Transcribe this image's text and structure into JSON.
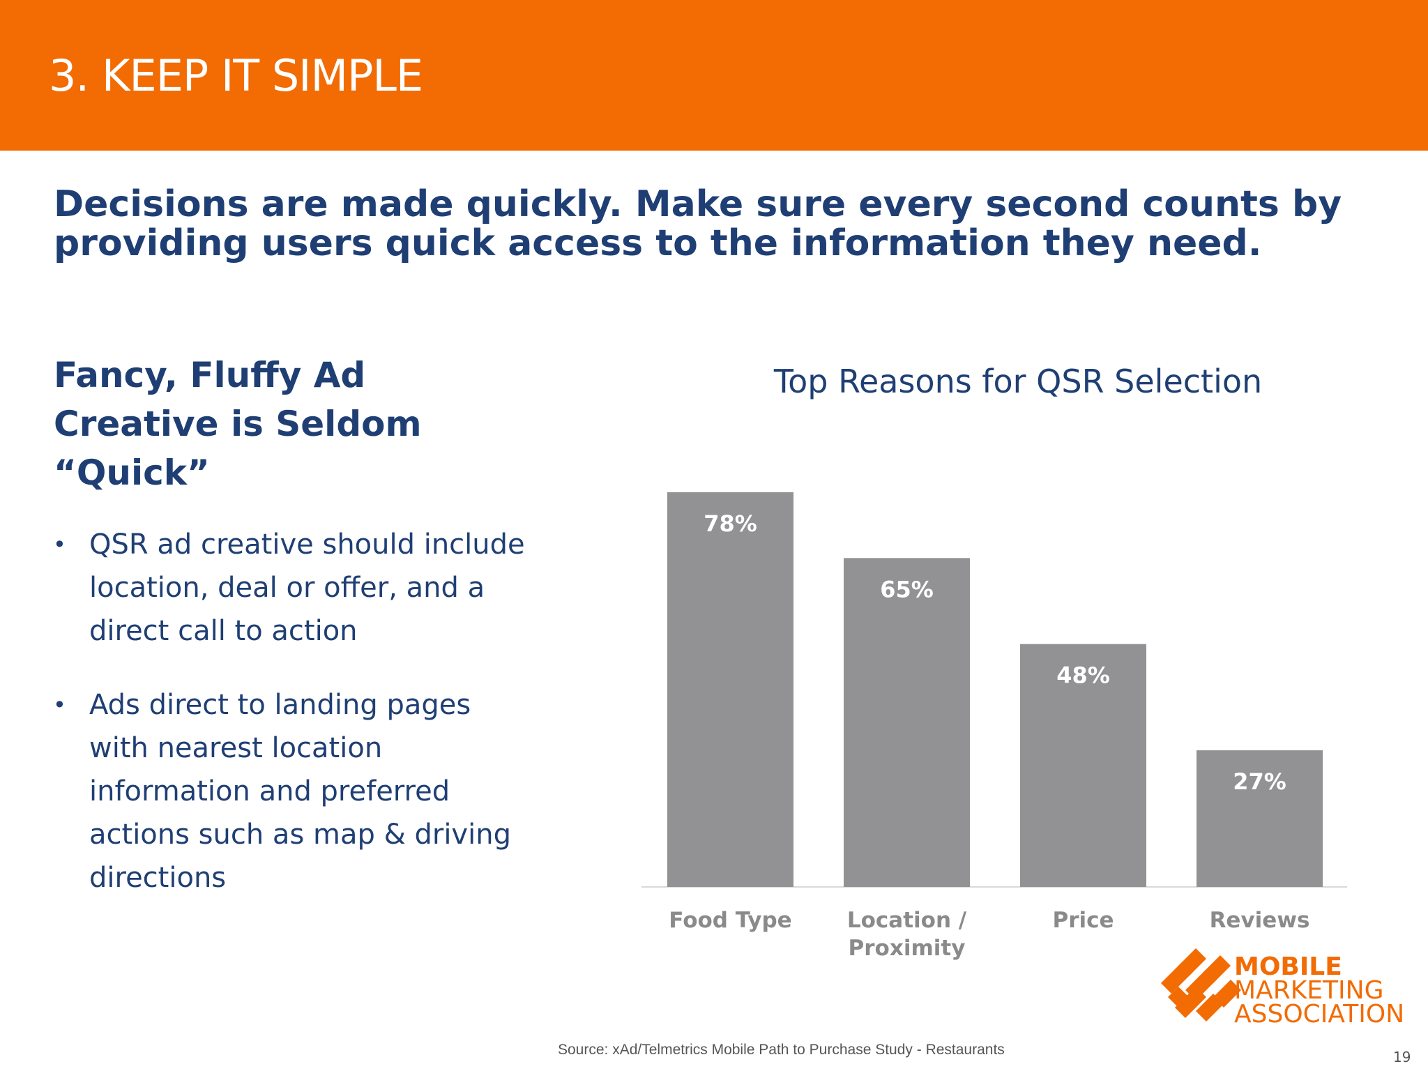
{
  "header": {
    "title": "3. KEEP IT SIMPLE"
  },
  "headline": {
    "line1": "Decisions are made quickly.  Make sure every second counts by",
    "line2": "providing users quick access to the information they need."
  },
  "left": {
    "subhead_lines": [
      "Fancy, Fluffy Ad",
      "Creative is Seldom",
      "“Quick”"
    ],
    "bullets": [
      {
        "marker": "•",
        "lines": [
          "QSR ad creative should include",
          "location, deal or offer, and a",
          "direct call to action"
        ]
      },
      {
        "marker": "•",
        "lines": [
          "Ads direct to landing pages",
          "with nearest location",
          "information and preferred",
          "actions such as map & driving",
          "directions"
        ]
      }
    ]
  },
  "chart_data": {
    "type": "bar",
    "title": "Top Reasons for QSR Selection",
    "categories": [
      "Food Type",
      "Location / Proximity",
      "Price",
      "Reviews"
    ],
    "category_lines": [
      [
        "Food Type"
      ],
      [
        "Location /",
        "Proximity"
      ],
      [
        "Price"
      ],
      [
        "Reviews"
      ]
    ],
    "values": [
      78,
      65,
      48,
      27
    ],
    "data_labels": [
      "78%",
      "65%",
      "48%",
      "27%"
    ],
    "unit": "%",
    "ylim": [
      0,
      78
    ],
    "grid": false,
    "legend": "none",
    "bar_color": "#929193",
    "label_color": "#ffffff",
    "axis_label_color": "#8a8a8a",
    "axis_line_color": "#d9d9d9"
  },
  "logo": {
    "line1": "MOBILE",
    "line2": "MARKETING",
    "line3": "ASSOCIATION",
    "color": "#f26b03"
  },
  "footer": {
    "source": "Source: xAd/Telmetrics Mobile Path to Purchase Study - Restaurants",
    "page_number": "19"
  }
}
